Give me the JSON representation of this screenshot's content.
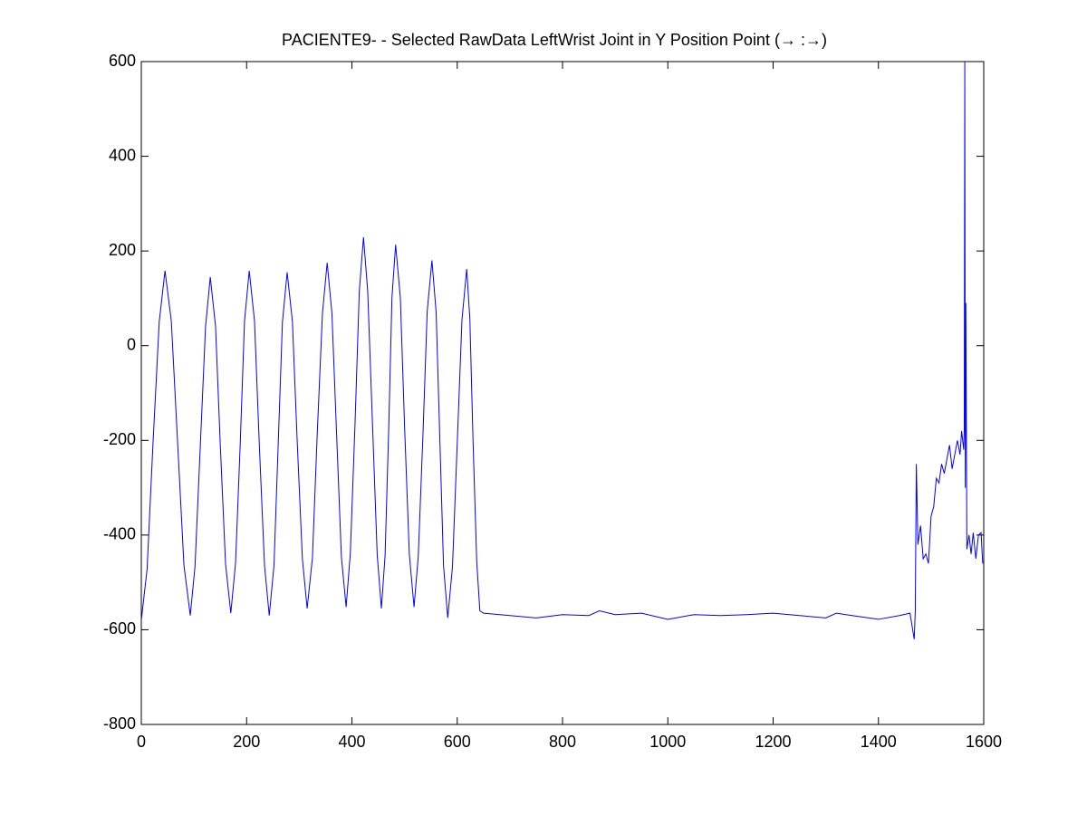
{
  "chart_data": {
    "type": "line",
    "title": "PACIENTE9- - Selected RawData LeftWrist Joint in Y Position Point (→ :→)",
    "color": "#0000ff",
    "xlim": [
      0,
      1600
    ],
    "xticks": [
      0,
      200,
      400,
      600,
      800,
      1000,
      1200,
      1400,
      1600
    ],
    "ylim": [
      -800,
      600
    ],
    "yticks": [
      -800,
      -600,
      -400,
      -200,
      0,
      200,
      400,
      600
    ],
    "grid": false,
    "x": [
      0,
      11,
      22,
      34,
      45,
      57,
      69,
      81,
      93,
      102,
      112,
      122,
      131,
      141,
      150,
      160,
      170,
      179,
      188,
      196,
      205,
      215,
      224,
      234,
      243,
      252,
      260,
      268,
      277,
      287,
      296,
      306,
      315,
      325,
      334,
      344,
      353,
      362,
      371,
      380,
      389,
      397,
      406,
      414,
      422,
      430,
      439,
      448,
      456,
      463,
      470,
      476,
      483,
      492,
      500,
      509,
      518,
      526,
      535,
      543,
      552,
      560,
      567,
      574,
      582,
      591,
      600,
      609,
      618,
      624,
      630,
      637,
      643,
      650,
      700,
      750,
      800,
      850,
      870,
      900,
      950,
      1000,
      1050,
      1100,
      1150,
      1200,
      1250,
      1300,
      1320,
      1350,
      1400,
      1440,
      1460,
      1465,
      1468,
      1470,
      1472,
      1475,
      1480,
      1485,
      1490,
      1495,
      1500,
      1505,
      1510,
      1515,
      1520,
      1525,
      1530,
      1535,
      1540,
      1545,
      1550,
      1555,
      1558,
      1562,
      1563,
      1564,
      1565,
      1566,
      1568,
      1572,
      1576,
      1580,
      1585,
      1590,
      1595,
      1598
    ],
    "values": [
      -580,
      -472,
      -211,
      50,
      158,
      52,
      -206,
      -464,
      -570,
      -466,
      -213,
      40,
      145,
      41,
      -210,
      -461,
      -565,
      -459,
      -204,
      52,
      158,
      52,
      -206,
      -464,
      -570,
      -464,
      -208,
      49,
      155,
      51,
      -200,
      -451,
      -555,
      -448,
      -190,
      68,
      175,
      69,
      -189,
      -446,
      -552,
      -438,
      -162,
      115,
      229,
      115,
      -163,
      -441,
      -555,
      -443,
      -171,
      101,
      213,
      101,
      -170,
      -440,
      -552,
      -445,
      -186,
      73,
      180,
      70,
      -198,
      -465,
      -575,
      -467,
      -207,
      54,
      162,
      57,
      -199,
      -455,
      -560,
      -565,
      -570,
      -575,
      -568,
      -570,
      -560,
      -568,
      -565,
      -578,
      -568,
      -570,
      -568,
      -565,
      -570,
      -575,
      -565,
      -570,
      -578,
      -570,
      -565,
      -600,
      -620,
      -560,
      -250,
      -420,
      -380,
      -450,
      -440,
      -460,
      -360,
      -340,
      -280,
      -290,
      -250,
      -270,
      -240,
      -210,
      -260,
      -230,
      -200,
      -230,
      -180,
      -220,
      -180,
      600,
      -300,
      90,
      -430,
      -400,
      -440,
      -395,
      -450,
      -400,
      -395,
      -460
    ]
  }
}
